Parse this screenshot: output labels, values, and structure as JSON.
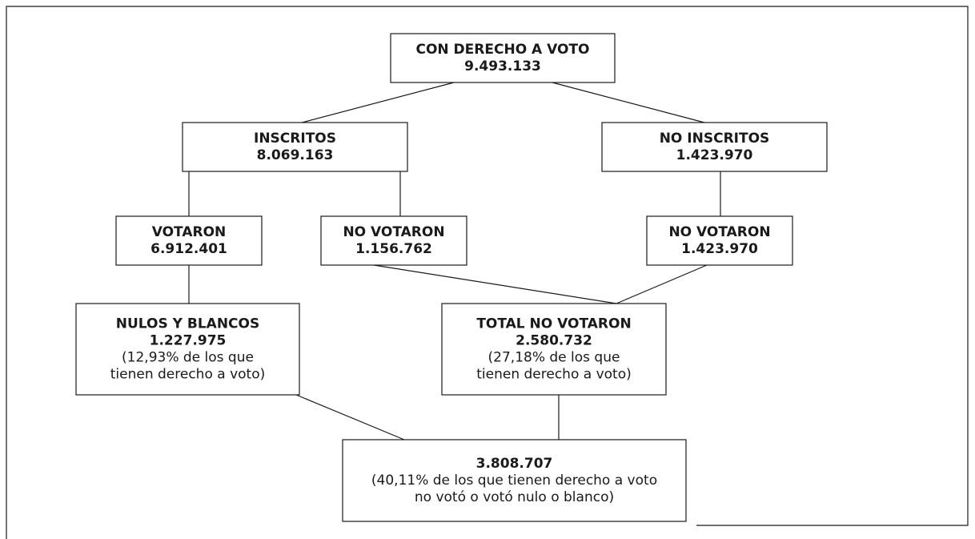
{
  "nodes": [
    {
      "title": "CON DERECHO A VOTO",
      "value": "9.493.133"
    },
    {
      "title": "INSCRITOS",
      "value": "8.069.163"
    },
    {
      "title": "NO INSCRITOS",
      "value": "1.423.970"
    },
    {
      "title": "VOTARON",
      "value": "6.912.401"
    },
    {
      "title": "NO VOTARON",
      "value": "1.156.762"
    },
    {
      "title": "NO VOTARON",
      "value": "1.423.970"
    },
    {
      "title": "NULOS Y BLANCOS",
      "value": "1.227.975",
      "note": [
        "(12,93% de los que",
        "tienen derecho a voto)"
      ]
    },
    {
      "title": "TOTAL NO VOTARON",
      "value": "2.580.732",
      "note": [
        "(27,18% de los que",
        "tienen derecho a voto)"
      ]
    },
    {
      "value": "3.808.707",
      "note": [
        "(40,11% de los que tienen derecho a voto",
        "no votó o votó nulo o blanco)"
      ]
    }
  ]
}
